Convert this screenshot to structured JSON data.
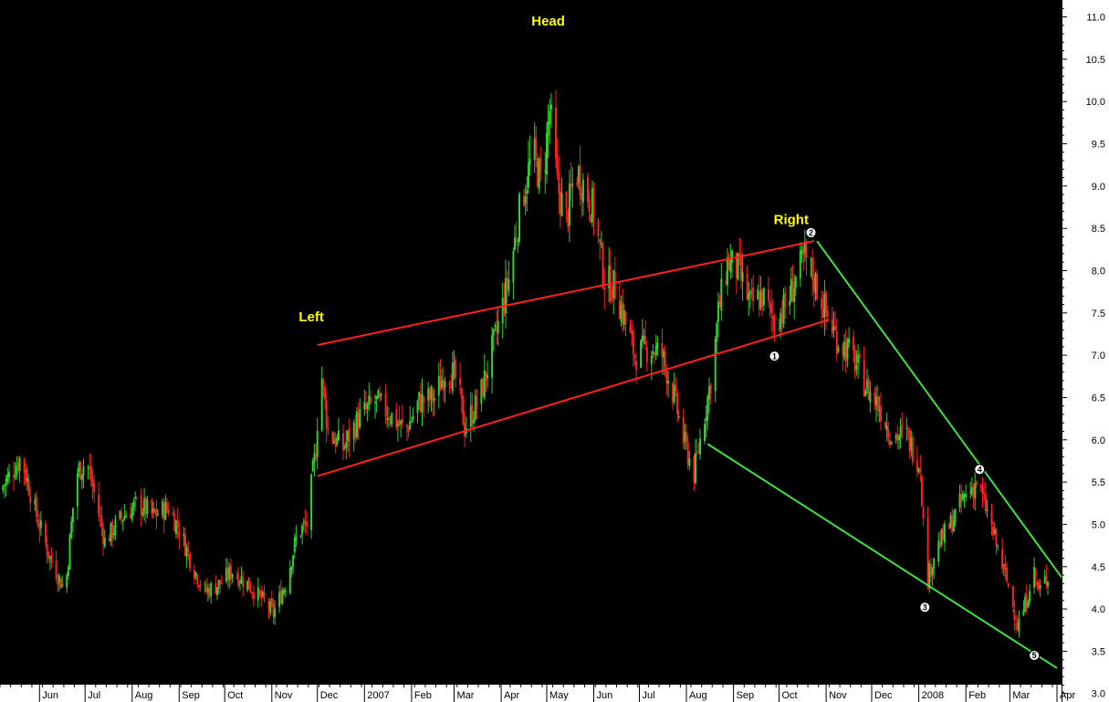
{
  "chart_data": {
    "type": "candlestick",
    "y_axis": {
      "min": 2.9,
      "max": 11.2,
      "ticks": [
        "3.0",
        "3.5",
        "4.0",
        "4.5",
        "5.0",
        "5.5",
        "6.0",
        "6.5",
        "7.0",
        "7.5",
        "8.0",
        "8.5",
        "9.0",
        "9.5",
        "10.0",
        "10.5",
        "11.0"
      ],
      "position": "right"
    },
    "x_axis": {
      "start": "2006-05-06",
      "end": "2008-04-04",
      "labels": [
        {
          "text": "Jun",
          "date": "2006-06-01"
        },
        {
          "text": "Jul",
          "date": "2006-07-01"
        },
        {
          "text": "Aug",
          "date": "2006-08-01"
        },
        {
          "text": "Sep",
          "date": "2006-09-01"
        },
        {
          "text": "Oct",
          "date": "2006-10-01"
        },
        {
          "text": "Nov",
          "date": "2006-11-01"
        },
        {
          "text": "Dec",
          "date": "2006-12-01"
        },
        {
          "text": "2007",
          "date": "2007-01-01"
        },
        {
          "text": "Feb",
          "date": "2007-02-01"
        },
        {
          "text": "Mar",
          "date": "2007-03-01"
        },
        {
          "text": "Apr",
          "date": "2007-04-01"
        },
        {
          "text": "May",
          "date": "2007-05-01"
        },
        {
          "text": "Jun",
          "date": "2007-06-01"
        },
        {
          "text": "Jul",
          "date": "2007-07-01"
        },
        {
          "text": "Aug",
          "date": "2007-08-01"
        },
        {
          "text": "Sep",
          "date": "2007-09-01"
        },
        {
          "text": "Oct",
          "date": "2007-10-01"
        },
        {
          "text": "Nov",
          "date": "2007-11-01"
        },
        {
          "text": "Dec",
          "date": "2007-12-01"
        },
        {
          "text": "2008",
          "date": "2008-01-01"
        },
        {
          "text": "Feb",
          "date": "2008-02-01"
        },
        {
          "text": "Mar",
          "date": "2008-03-01"
        },
        {
          "text": "Apr",
          "date": "2008-04-01"
        }
      ]
    },
    "price_path": [
      [
        "2006-05-06",
        5.4
      ],
      [
        "2006-05-20",
        5.8
      ],
      [
        "2006-05-30",
        5.1
      ],
      [
        "2006-06-08",
        4.6
      ],
      [
        "2006-06-18",
        4.2
      ],
      [
        "2006-06-22",
        5.0
      ],
      [
        "2006-06-25",
        5.6
      ],
      [
        "2006-07-02",
        5.75
      ],
      [
        "2006-07-08",
        5.3
      ],
      [
        "2006-07-14",
        4.8
      ],
      [
        "2006-07-26",
        5.1
      ],
      [
        "2006-08-05",
        5.25
      ],
      [
        "2006-08-15",
        5.1
      ],
      [
        "2006-08-25",
        5.2
      ],
      [
        "2006-09-02",
        4.9
      ],
      [
        "2006-09-10",
        4.5
      ],
      [
        "2006-09-18",
        4.2
      ],
      [
        "2006-09-28",
        4.3
      ],
      [
        "2006-10-06",
        4.45
      ],
      [
        "2006-10-16",
        4.3
      ],
      [
        "2006-10-26",
        4.1
      ],
      [
        "2006-11-02",
        3.95
      ],
      [
        "2006-11-10",
        4.3
      ],
      [
        "2006-11-18",
        4.9
      ],
      [
        "2006-11-24",
        5.0
      ],
      [
        "2006-11-30",
        5.9
      ],
      [
        "2006-12-03",
        6.9
      ],
      [
        "2006-12-08",
        6.1
      ],
      [
        "2006-12-18",
        5.9
      ],
      [
        "2006-12-28",
        6.25
      ],
      [
        "2007-01-08",
        6.45
      ],
      [
        "2007-01-18",
        6.3
      ],
      [
        "2007-01-28",
        6.1
      ],
      [
        "2007-02-06",
        6.45
      ],
      [
        "2007-02-16",
        6.5
      ],
      [
        "2007-02-24",
        6.85
      ],
      [
        "2007-03-03",
        6.7
      ],
      [
        "2007-03-08",
        6.15
      ],
      [
        "2007-03-18",
        6.5
      ],
      [
        "2007-03-28",
        7.2
      ],
      [
        "2007-04-06",
        7.9
      ],
      [
        "2007-04-14",
        8.8
      ],
      [
        "2007-04-22",
        9.4
      ],
      [
        "2007-04-28",
        9.0
      ],
      [
        "2007-05-03",
        9.9
      ],
      [
        "2007-05-08",
        9.0
      ],
      [
        "2007-05-14",
        8.6
      ],
      [
        "2007-05-20",
        9.2
      ],
      [
        "2007-05-26",
        9.0
      ],
      [
        "2007-06-01",
        8.7
      ],
      [
        "2007-06-08",
        7.9
      ],
      [
        "2007-06-15",
        7.8
      ],
      [
        "2007-06-20",
        7.5
      ],
      [
        "2007-06-28",
        7.0
      ],
      [
        "2007-07-08",
        7.1
      ],
      [
        "2007-07-16",
        7.0
      ],
      [
        "2007-07-24",
        6.5
      ],
      [
        "2007-07-30",
        6.0
      ],
      [
        "2007-08-06",
        5.6
      ],
      [
        "2007-08-12",
        6.2
      ],
      [
        "2007-08-18",
        6.8
      ],
      [
        "2007-08-22",
        7.5
      ],
      [
        "2007-08-28",
        8.1
      ],
      [
        "2007-09-04",
        8.0
      ],
      [
        "2007-09-12",
        7.6
      ],
      [
        "2007-09-20",
        7.7
      ],
      [
        "2007-09-28",
        7.4
      ],
      [
        "2007-10-06",
        7.6
      ],
      [
        "2007-10-12",
        7.9
      ],
      [
        "2007-10-18",
        8.15
      ],
      [
        "2007-10-24",
        7.9
      ],
      [
        "2007-11-01",
        7.5
      ],
      [
        "2007-11-08",
        7.2
      ],
      [
        "2007-11-18",
        7.0
      ],
      [
        "2007-11-28",
        6.6
      ],
      [
        "2007-12-06",
        6.4
      ],
      [
        "2007-12-14",
        6.05
      ],
      [
        "2007-12-24",
        6.05
      ],
      [
        "2008-01-02",
        5.7
      ],
      [
        "2008-01-06",
        4.3
      ],
      [
        "2008-01-12",
        4.7
      ],
      [
        "2008-01-22",
        5.0
      ],
      [
        "2008-01-30",
        5.3
      ],
      [
        "2008-02-08",
        5.5
      ],
      [
        "2008-02-14",
        5.2
      ],
      [
        "2008-02-22",
        4.7
      ],
      [
        "2008-03-01",
        4.2
      ],
      [
        "2008-03-06",
        3.8
      ],
      [
        "2008-03-12",
        4.1
      ],
      [
        "2008-03-16",
        4.5
      ],
      [
        "2008-03-20",
        4.2
      ],
      [
        "2008-03-26",
        4.4
      ]
    ],
    "trendlines": [
      {
        "color": "#ff2020",
        "from": [
          "2006-12-01",
          7.12
        ],
        "to": [
          "2007-10-24",
          8.35
        ]
      },
      {
        "color": "#ff2020",
        "from": [
          "2006-12-01",
          5.57
        ],
        "to": [
          "2007-11-03",
          7.42
        ]
      },
      {
        "color": "#40e040",
        "from": [
          "2007-10-26",
          8.35
        ],
        "to": [
          "2008-04-05",
          4.35
        ]
      },
      {
        "color": "#40e040",
        "from": [
          "2007-08-15",
          5.95
        ],
        "to": [
          "2008-04-01",
          3.3
        ]
      }
    ],
    "annotations": [
      {
        "text": "Head",
        "date": "2007-05-02",
        "price": 10.9
      },
      {
        "text": "Left",
        "date": "2006-11-27",
        "price": 7.4
      },
      {
        "text": "Right",
        "date": "2007-10-09",
        "price": 8.55
      }
    ],
    "markers": [
      {
        "text": "1",
        "date": "2007-09-28",
        "price": 6.99
      },
      {
        "text": "2",
        "date": "2007-10-22",
        "price": 8.45
      },
      {
        "text": "3",
        "date": "2008-01-05",
        "price": 4.02
      },
      {
        "text": "4",
        "date": "2008-02-10",
        "price": 5.65
      },
      {
        "text": "5",
        "date": "2008-03-17",
        "price": 3.45
      }
    ],
    "colors": {
      "up": "#30d030",
      "down": "#ff2020",
      "background": "#000000",
      "axis_bg": "#ffffff",
      "annotation_text": "#ffff00"
    },
    "grid": false
  }
}
